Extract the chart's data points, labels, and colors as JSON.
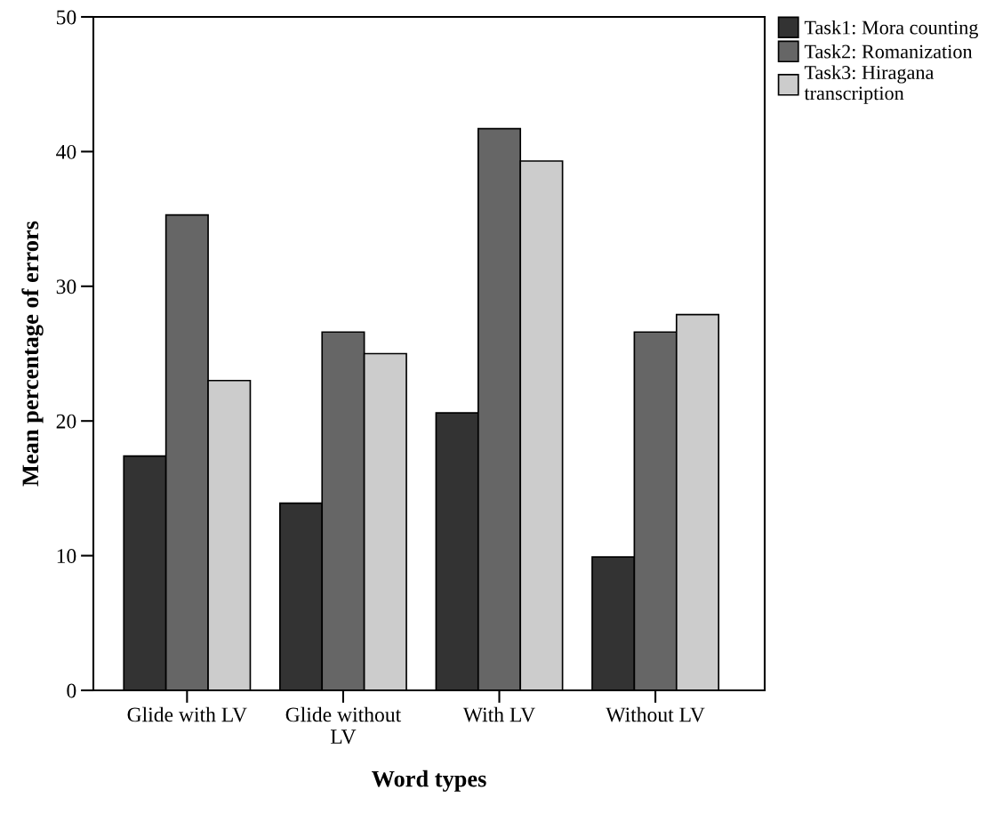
{
  "chart_data": {
    "type": "bar",
    "xlabel": "Word types",
    "ylabel": "Mean percentage of errors",
    "categories": [
      "Glide with LV",
      "Glide without\nLV",
      "With LV",
      "Without LV"
    ],
    "series": [
      {
        "name": "Task1: Mora counting",
        "color": "#333333",
        "values": [
          17.4,
          13.9,
          20.6,
          9.9
        ]
      },
      {
        "name": "Task2: Romanization",
        "color": "#666666",
        "values": [
          35.3,
          26.6,
          41.7,
          26.6
        ]
      },
      {
        "name": "Task3: Hiragana\ntranscription",
        "color": "#cccccc",
        "values": [
          23.0,
          25.0,
          39.3,
          27.9
        ]
      }
    ],
    "ylim": [
      0,
      50
    ],
    "yticks": [
      0,
      10,
      20,
      30,
      40,
      50
    ],
    "grid": false,
    "legend": "top right"
  }
}
